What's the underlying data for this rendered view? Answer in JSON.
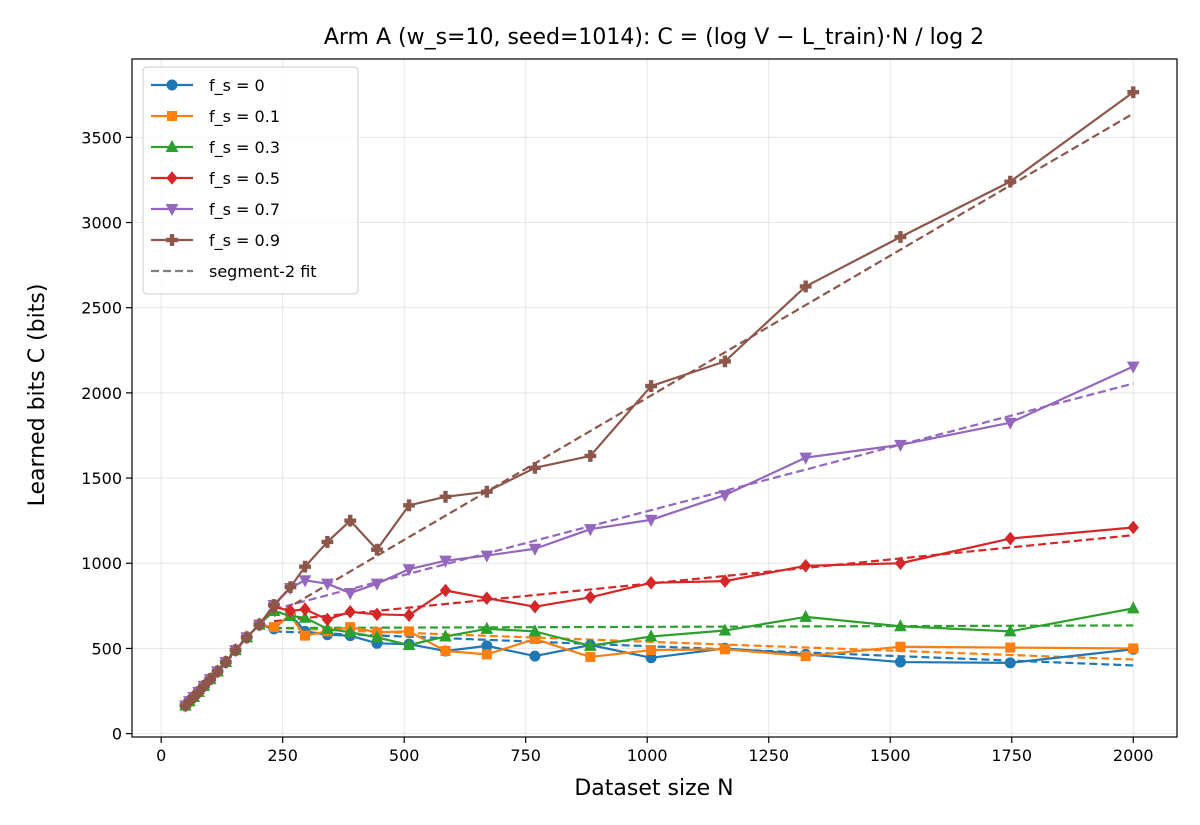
{
  "chart_data": {
    "type": "line",
    "title": "Arm A (w_s=10, seed=1014): C = (log V − L_train)·N / log 2",
    "xlabel": "Dataset size N",
    "ylabel": "Learned bits C (bits)",
    "xlim": [
      -60,
      2090
    ],
    "ylim": [
      -20,
      3960
    ],
    "xticks": [
      0,
      250,
      500,
      750,
      1000,
      1250,
      1500,
      1750,
      2000
    ],
    "yticks": [
      0,
      500,
      1000,
      1500,
      2000,
      2500,
      3000,
      3500
    ],
    "grid": true,
    "legend_position": "top-left",
    "x": [
      50,
      58,
      67,
      77,
      88,
      101,
      116,
      133,
      153,
      176,
      202,
      232,
      266,
      305,
      350,
      402,
      462,
      531,
      610,
      700,
      803,
      921,
      1055,
      1208,
      1382,
      1580,
      1805,
      2000
    ],
    "series": [
      {
        "name": "f_s = 0",
        "color": "#1f77b4",
        "marker": "circle",
        "points": [
          [
            50,
            165
          ],
          [
            58,
            190
          ],
          [
            67,
            215
          ],
          [
            77,
            245
          ],
          [
            88,
            280
          ],
          [
            101,
            320
          ],
          [
            116,
            365
          ],
          [
            133,
            420
          ],
          [
            153,
            490
          ],
          [
            176,
            565
          ],
          [
            202,
            640
          ],
          [
            232,
            615
          ],
          [
            266,
            700
          ],
          [
            296,
            600
          ],
          [
            342,
            580
          ],
          [
            389,
            575
          ],
          [
            444,
            530
          ],
          [
            510,
            525
          ],
          [
            585,
            485
          ],
          [
            670,
            515
          ],
          [
            769,
            455
          ],
          [
            883,
            520
          ],
          [
            1008,
            445
          ],
          [
            1160,
            500
          ],
          [
            1326,
            465
          ],
          [
            1521,
            420
          ],
          [
            1747,
            415
          ],
          [
            2000,
            495
          ]
        ],
        "fit": [
          [
            232,
            600
          ],
          [
            2000,
            400
          ]
        ]
      },
      {
        "name": "f_s = 0.1",
        "color": "#ff7f0e",
        "marker": "square",
        "points": [
          [
            50,
            165
          ],
          [
            58,
            190
          ],
          [
            67,
            215
          ],
          [
            77,
            245
          ],
          [
            88,
            280
          ],
          [
            101,
            320
          ],
          [
            116,
            365
          ],
          [
            133,
            420
          ],
          [
            153,
            490
          ],
          [
            176,
            565
          ],
          [
            202,
            640
          ],
          [
            232,
            625
          ],
          [
            266,
            690
          ],
          [
            296,
            575
          ],
          [
            342,
            600
          ],
          [
            389,
            625
          ],
          [
            444,
            595
          ],
          [
            510,
            600
          ],
          [
            585,
            485
          ],
          [
            670,
            465
          ],
          [
            769,
            555
          ],
          [
            883,
            450
          ],
          [
            1008,
            490
          ],
          [
            1160,
            495
          ],
          [
            1326,
            455
          ],
          [
            1521,
            510
          ],
          [
            1747,
            505
          ],
          [
            2000,
            500
          ]
        ],
        "fit": [
          [
            232,
            620
          ],
          [
            2000,
            435
          ]
        ]
      },
      {
        "name": "f_s = 0.3",
        "color": "#2ca02c",
        "marker": "triangle-up",
        "points": [
          [
            50,
            165
          ],
          [
            58,
            190
          ],
          [
            67,
            215
          ],
          [
            77,
            245
          ],
          [
            88,
            280
          ],
          [
            101,
            320
          ],
          [
            116,
            365
          ],
          [
            133,
            420
          ],
          [
            153,
            490
          ],
          [
            176,
            565
          ],
          [
            202,
            640
          ],
          [
            232,
            720
          ],
          [
            266,
            690
          ],
          [
            296,
            680
          ],
          [
            342,
            615
          ],
          [
            389,
            595
          ],
          [
            444,
            565
          ],
          [
            510,
            520
          ],
          [
            585,
            570
          ],
          [
            670,
            615
          ],
          [
            769,
            600
          ],
          [
            883,
            515
          ],
          [
            1008,
            570
          ],
          [
            1160,
            605
          ],
          [
            1326,
            685
          ],
          [
            1521,
            630
          ],
          [
            1747,
            600
          ],
          [
            2000,
            735
          ]
        ],
        "fit": [
          [
            232,
            620
          ],
          [
            2000,
            635
          ]
        ]
      },
      {
        "name": "f_s = 0.5",
        "color": "#d62728",
        "marker": "diamond",
        "points": [
          [
            50,
            165
          ],
          [
            58,
            190
          ],
          [
            67,
            215
          ],
          [
            77,
            245
          ],
          [
            88,
            280
          ],
          [
            101,
            320
          ],
          [
            116,
            365
          ],
          [
            133,
            420
          ],
          [
            153,
            490
          ],
          [
            176,
            565
          ],
          [
            202,
            640
          ],
          [
            232,
            745
          ],
          [
            266,
            720
          ],
          [
            296,
            730
          ],
          [
            342,
            670
          ],
          [
            389,
            715
          ],
          [
            444,
            700
          ],
          [
            510,
            695
          ],
          [
            585,
            840
          ],
          [
            670,
            795
          ],
          [
            769,
            745
          ],
          [
            883,
            800
          ],
          [
            1008,
            885
          ],
          [
            1160,
            895
          ],
          [
            1326,
            985
          ],
          [
            1521,
            1000
          ],
          [
            1747,
            1145
          ],
          [
            2000,
            1210
          ]
        ],
        "fit": [
          [
            232,
            660
          ],
          [
            2000,
            1165
          ]
        ]
      },
      {
        "name": "f_s = 0.7",
        "color": "#9467bd",
        "marker": "triangle-down",
        "points": [
          [
            50,
            165
          ],
          [
            58,
            190
          ],
          [
            67,
            215
          ],
          [
            77,
            245
          ],
          [
            88,
            280
          ],
          [
            101,
            320
          ],
          [
            116,
            365
          ],
          [
            133,
            420
          ],
          [
            153,
            490
          ],
          [
            176,
            565
          ],
          [
            202,
            640
          ],
          [
            232,
            755
          ],
          [
            266,
            855
          ],
          [
            296,
            900
          ],
          [
            342,
            880
          ],
          [
            389,
            825
          ],
          [
            444,
            880
          ],
          [
            510,
            965
          ],
          [
            585,
            1015
          ],
          [
            670,
            1045
          ],
          [
            769,
            1085
          ],
          [
            883,
            1200
          ],
          [
            1008,
            1255
          ],
          [
            1160,
            1400
          ],
          [
            1326,
            1620
          ],
          [
            1521,
            1695
          ],
          [
            1747,
            1825
          ],
          [
            2000,
            2155
          ]
        ],
        "fit": [
          [
            232,
            730
          ],
          [
            2000,
            2055
          ]
        ]
      },
      {
        "name": "f_s = 0.9",
        "color": "#8c564b",
        "marker": "plus",
        "points": [
          [
            50,
            165
          ],
          [
            58,
            190
          ],
          [
            67,
            215
          ],
          [
            77,
            245
          ],
          [
            88,
            280
          ],
          [
            101,
            320
          ],
          [
            116,
            365
          ],
          [
            133,
            420
          ],
          [
            153,
            490
          ],
          [
            176,
            565
          ],
          [
            202,
            640
          ],
          [
            232,
            755
          ],
          [
            266,
            860
          ],
          [
            296,
            980
          ],
          [
            342,
            1125
          ],
          [
            389,
            1250
          ],
          [
            444,
            1080
          ],
          [
            510,
            1340
          ],
          [
            585,
            1390
          ],
          [
            670,
            1420
          ],
          [
            769,
            1560
          ],
          [
            883,
            1630
          ],
          [
            1008,
            2040
          ],
          [
            1160,
            2185
          ],
          [
            1326,
            2625
          ],
          [
            1521,
            2915
          ],
          [
            1747,
            3240
          ],
          [
            2000,
            3765
          ]
        ],
        "fit": [
          [
            232,
            690
          ],
          [
            2000,
            3640
          ]
        ]
      }
    ],
    "fit_legend": {
      "name": "segment-2 fit",
      "color": "#7f7f7f"
    }
  }
}
